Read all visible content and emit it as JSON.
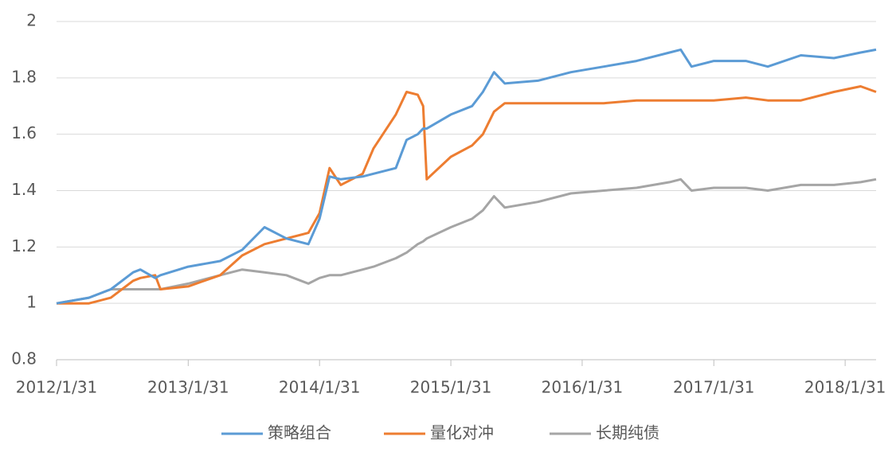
{
  "chart_data": {
    "type": "line",
    "x": [
      "2012/1/31",
      "2012/4/30",
      "2012/6/30",
      "2012/8/31",
      "2012/9/20",
      "2012/10/31",
      "2012/11/15",
      "2013/1/31",
      "2013/4/30",
      "2013/6/30",
      "2013/8/31",
      "2013/10/31",
      "2013/12/31",
      "2014/1/31",
      "2014/2/28",
      "2014/3/31",
      "2014/5/31",
      "2014/6/30",
      "2014/8/31",
      "2014/9/30",
      "2014/10/31",
      "2014/11/15",
      "2014/11/25",
      "2015/1/31",
      "2015/3/31",
      "2015/4/30",
      "2015/5/31",
      "2015/6/30",
      "2015/9/30",
      "2015/12/31",
      "2016/3/31",
      "2016/6/30",
      "2016/9/30",
      "2016/10/31",
      "2016/11/30",
      "2017/1/31",
      "2017/4/30",
      "2017/6/30",
      "2017/9/30",
      "2017/12/31",
      "2018/3/15",
      "2018/4/27"
    ],
    "series": [
      {
        "name": "策略组合",
        "color": "#5b9bd5",
        "values": [
          1.0,
          1.02,
          1.05,
          1.11,
          1.12,
          1.09,
          1.1,
          1.13,
          1.15,
          1.19,
          1.27,
          1.23,
          1.21,
          1.3,
          1.45,
          1.44,
          1.45,
          1.46,
          1.48,
          1.58,
          1.6,
          1.62,
          1.62,
          1.67,
          1.7,
          1.75,
          1.82,
          1.78,
          1.79,
          1.82,
          1.84,
          1.86,
          1.89,
          1.9,
          1.84,
          1.86,
          1.86,
          1.84,
          1.88,
          1.87,
          1.89,
          1.9
        ]
      },
      {
        "name": "量化对冲",
        "color": "#ed7d31",
        "values": [
          1.0,
          1.0,
          1.02,
          1.08,
          1.09,
          1.1,
          1.05,
          1.06,
          1.1,
          1.17,
          1.21,
          1.23,
          1.25,
          1.32,
          1.48,
          1.42,
          1.46,
          1.55,
          1.67,
          1.75,
          1.74,
          1.7,
          1.44,
          1.52,
          1.56,
          1.6,
          1.68,
          1.71,
          1.71,
          1.71,
          1.71,
          1.72,
          1.72,
          1.72,
          1.72,
          1.72,
          1.73,
          1.72,
          1.72,
          1.75,
          1.77,
          1.75
        ]
      },
      {
        "name": "长期纯债",
        "color": "#a5a5a5",
        "values": [
          1.0,
          1.02,
          1.05,
          1.05,
          1.05,
          1.05,
          1.05,
          1.07,
          1.1,
          1.12,
          1.11,
          1.1,
          1.07,
          1.09,
          1.1,
          1.1,
          1.12,
          1.13,
          1.16,
          1.18,
          1.21,
          1.22,
          1.23,
          1.27,
          1.3,
          1.33,
          1.38,
          1.34,
          1.36,
          1.39,
          1.4,
          1.41,
          1.43,
          1.44,
          1.4,
          1.41,
          1.41,
          1.4,
          1.42,
          1.42,
          1.43,
          1.44
        ]
      }
    ],
    "xlim": [
      "2012/1/31",
      "2018/4/27"
    ],
    "xticks": [
      "2012/1/31",
      "2013/1/31",
      "2014/1/31",
      "2015/1/31",
      "2016/1/31",
      "2017/1/31",
      "2018/1/31"
    ],
    "ylim": [
      0.8,
      2
    ],
    "yticks": [
      0.8,
      1,
      1.2,
      1.4,
      1.6,
      1.8,
      2
    ],
    "grid": true,
    "legend": "bottom"
  }
}
